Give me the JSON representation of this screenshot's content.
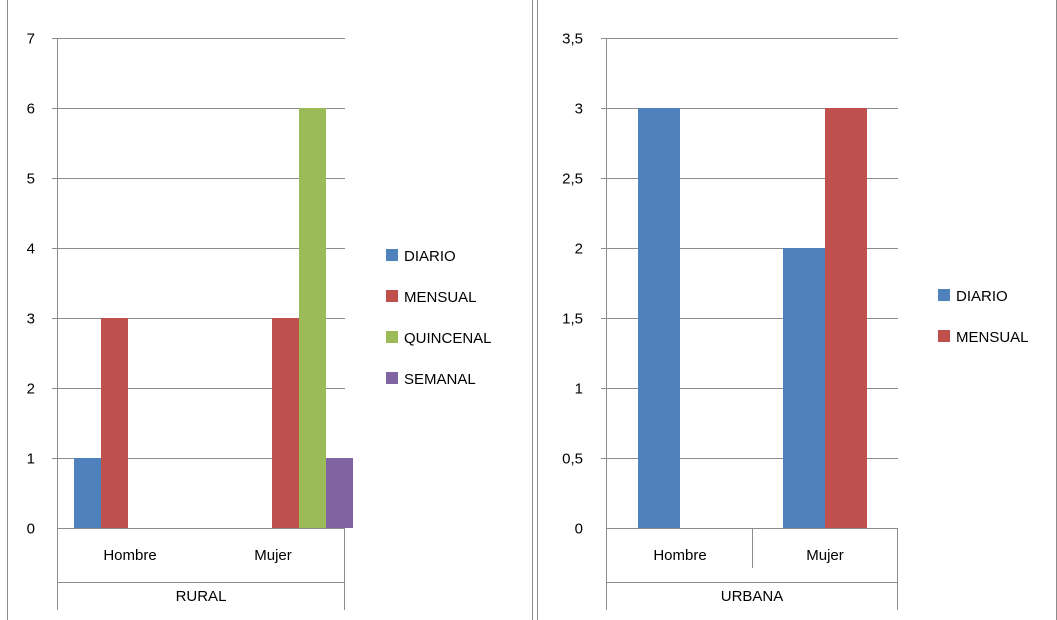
{
  "chart_data": [
    {
      "type": "bar",
      "categories": [
        "Hombre",
        "Mujer"
      ],
      "group_label": "RURAL",
      "series": [
        {
          "name": "DIARIO",
          "values": [
            1,
            null
          ],
          "color": "#4F81BD"
        },
        {
          "name": "MENSUAL",
          "values": [
            3,
            3
          ],
          "color": "#C0504D"
        },
        {
          "name": "QUINCENAL",
          "values": [
            null,
            6
          ],
          "color": "#9BBB59"
        },
        {
          "name": "SEMANAL",
          "values": [
            null,
            1
          ],
          "color": "#8064A2"
        }
      ],
      "ylim": [
        0,
        7
      ],
      "yticks": [
        0,
        1,
        2,
        3,
        4,
        5,
        6,
        7
      ],
      "ytick_labels": [
        "0",
        "1",
        "2",
        "3",
        "4",
        "5",
        "6",
        "7"
      ],
      "grid": true,
      "legend_position": "right"
    },
    {
      "type": "bar",
      "categories": [
        "Hombre",
        "Mujer"
      ],
      "group_label": "URBANA",
      "series": [
        {
          "name": "DIARIO",
          "values": [
            3,
            2
          ],
          "color": "#4F81BD"
        },
        {
          "name": "MENSUAL",
          "values": [
            null,
            3
          ],
          "color": "#C0504D"
        }
      ],
      "ylim": [
        0,
        3.5
      ],
      "yticks": [
        0,
        0.5,
        1,
        1.5,
        2,
        2.5,
        3,
        3.5
      ],
      "ytick_labels": [
        "0",
        "0,5",
        "1",
        "1,5",
        "2",
        "2,5",
        "3",
        "3,5"
      ],
      "grid": true,
      "legend_position": "right"
    }
  ]
}
